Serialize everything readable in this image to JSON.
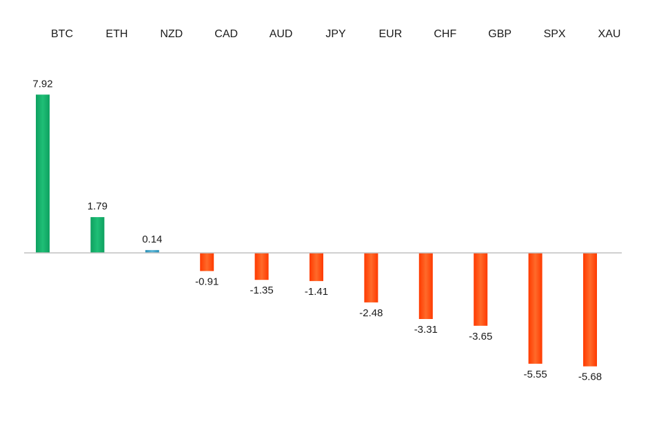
{
  "chart_data": {
    "type": "bar",
    "categories": [
      "BTC",
      "ETH",
      "NZD",
      "CAD",
      "AUD",
      "JPY",
      "EUR",
      "CHF",
      "GBP",
      "SPX",
      "XAU"
    ],
    "values": [
      7.92,
      1.79,
      0.14,
      -0.91,
      -1.35,
      -1.41,
      -2.48,
      -3.31,
      -3.65,
      -5.55,
      -5.68
    ],
    "value_labels": [
      "7.92",
      "1.79",
      "0.14",
      "-0.91",
      "-1.35",
      "-1.41",
      "-2.48",
      "-3.31",
      "-3.65",
      "-5.55",
      "-5.68"
    ],
    "category_label_position": "top",
    "grid": false,
    "legend": "none",
    "colors": {
      "positive_gradient": [
        "#0ea060",
        "#1fbf76",
        "#0ea060"
      ],
      "small_positive_gradient": [
        "#2b8fb5",
        "#5cb7d8",
        "#2b8fb5"
      ],
      "negative_gradient": [
        "#ff3a00",
        "#ff6a2a",
        "#ff3a00"
      ],
      "baseline": "#bfbfbf"
    }
  }
}
